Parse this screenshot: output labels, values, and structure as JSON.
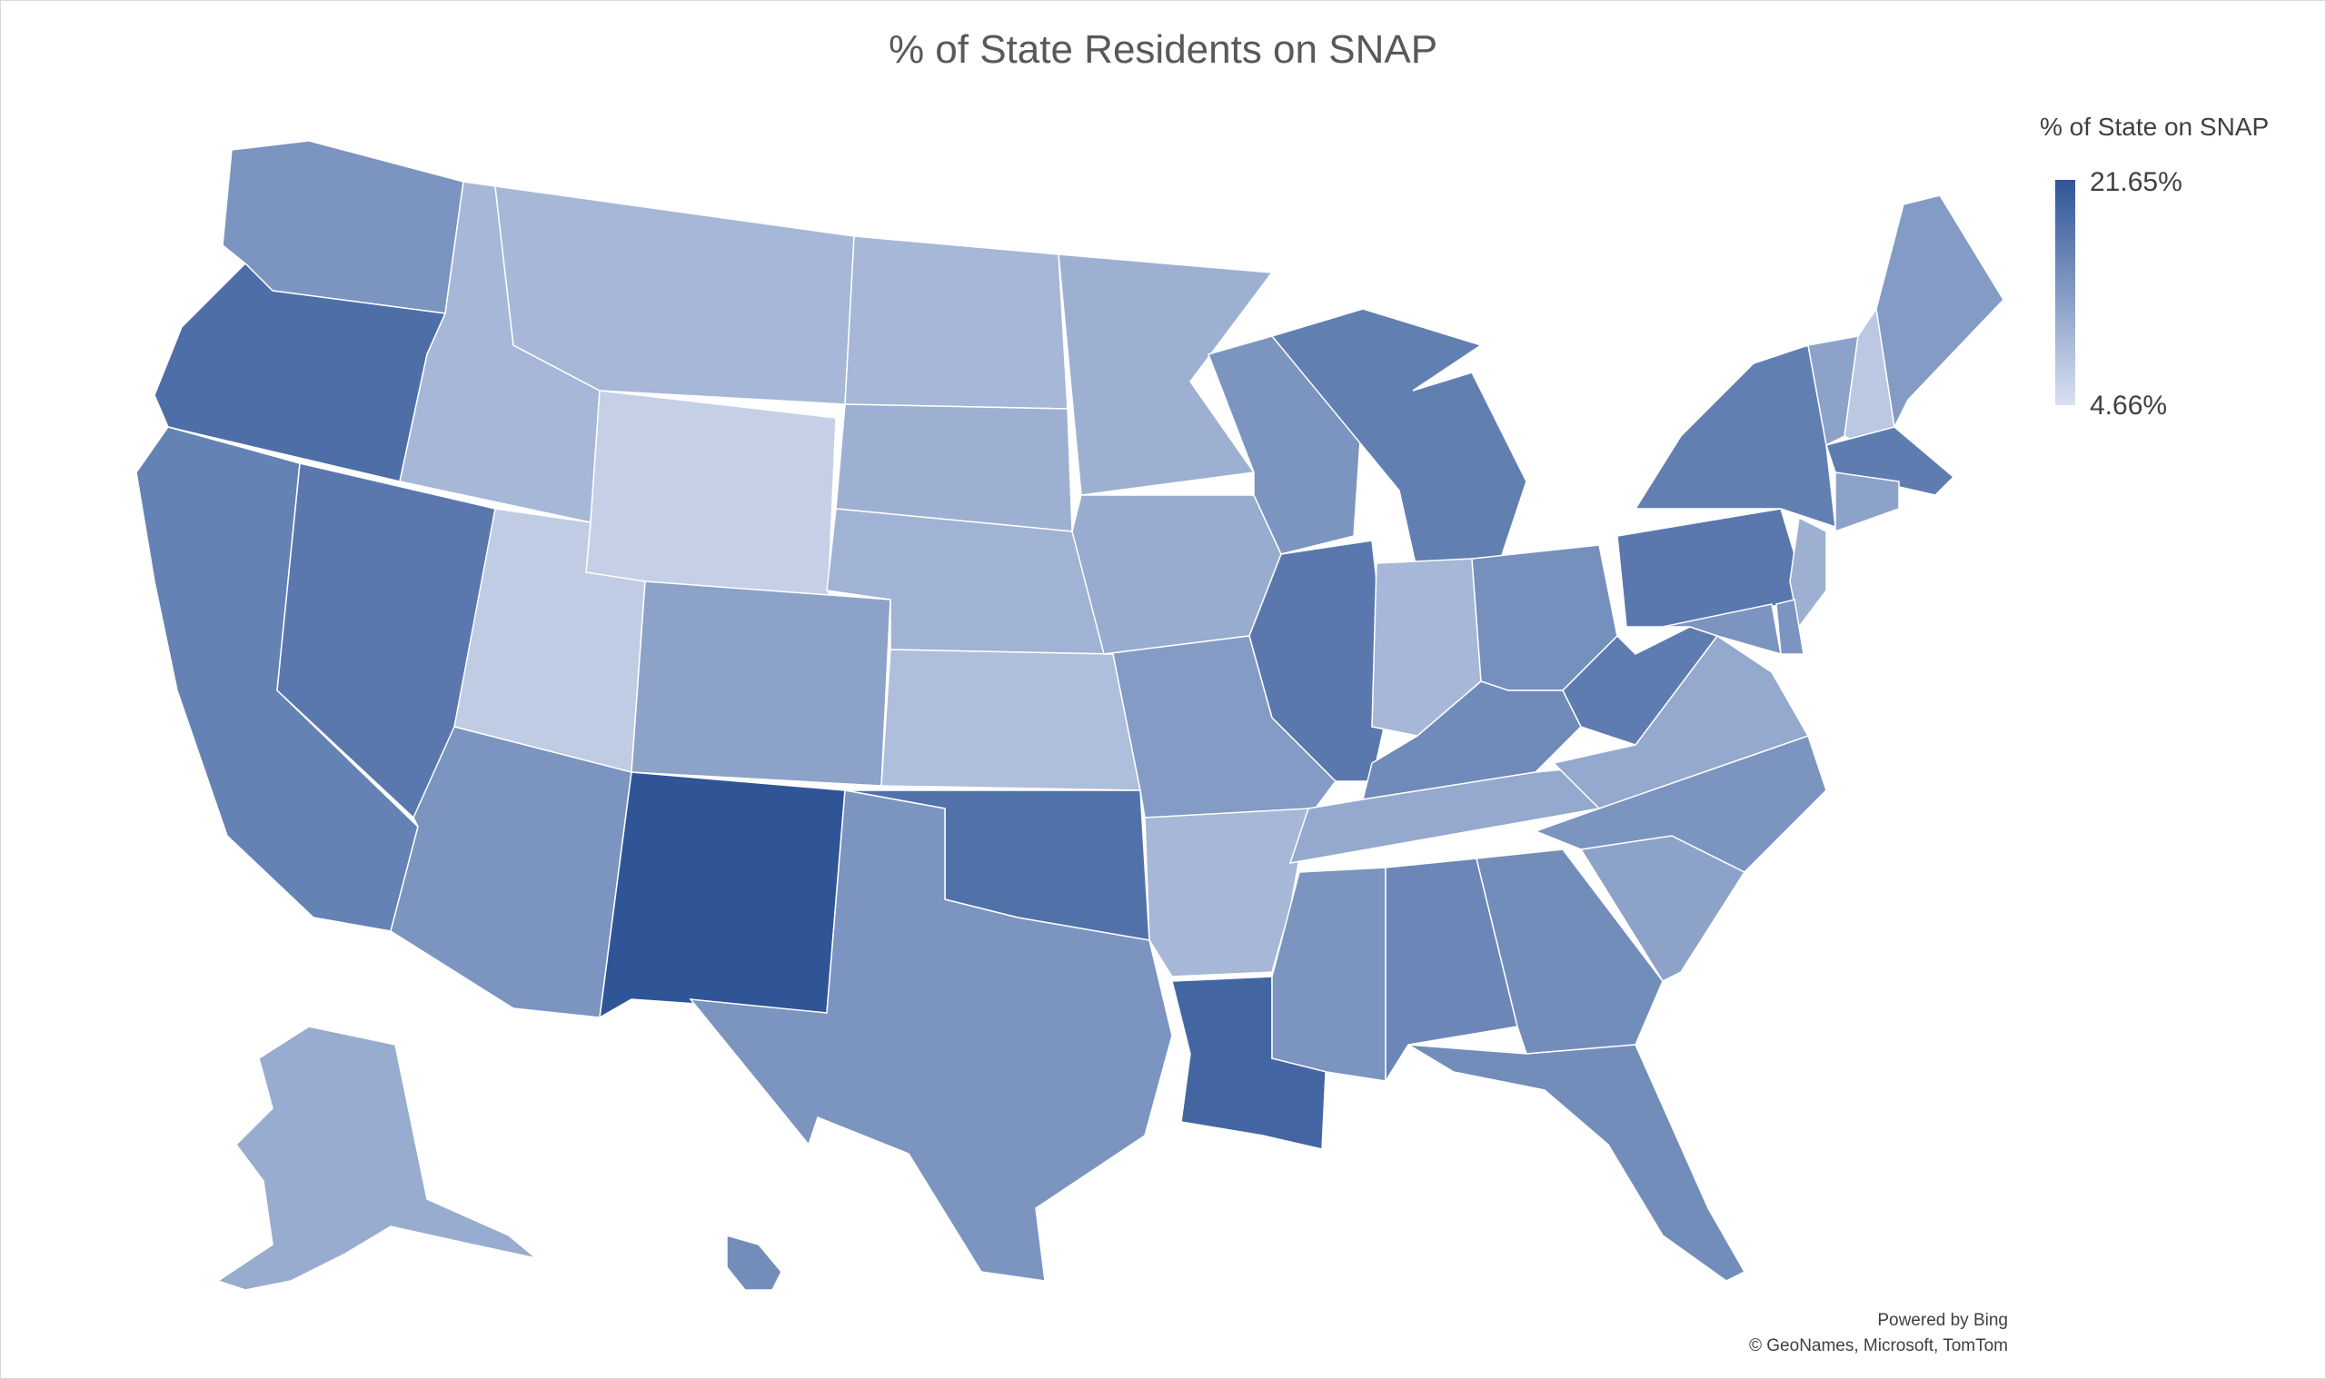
{
  "map": {
    "title": "% of State Residents on SNAP",
    "legend": {
      "title": "% of State on SNAP",
      "max_label": "21.65%",
      "min_label": "4.66%",
      "max_color": "#2f5597",
      "min_color": "#d9e1f2",
      "min_value": 4.66,
      "max_value": 21.65
    },
    "credits": {
      "line1": "Powered by Bing",
      "line2": "© GeoNames, Microsoft, TomTom"
    },
    "states": [
      {
        "id": "WA",
        "level": 0.55
      },
      {
        "id": "OR",
        "level": 0.82
      },
      {
        "id": "CA",
        "level": 0.68
      },
      {
        "id": "NV",
        "level": 0.75
      },
      {
        "id": "ID",
        "level": 0.3
      },
      {
        "id": "MT",
        "level": 0.3
      },
      {
        "id": "WY",
        "level": 0.12
      },
      {
        "id": "UT",
        "level": 0.15
      },
      {
        "id": "AZ",
        "level": 0.55
      },
      {
        "id": "NM",
        "level": 1.0
      },
      {
        "id": "CO",
        "level": 0.45
      },
      {
        "id": "ND",
        "level": 0.3
      },
      {
        "id": "SD",
        "level": 0.35
      },
      {
        "id": "NE",
        "level": 0.33
      },
      {
        "id": "KS",
        "level": 0.25
      },
      {
        "id": "OK",
        "level": 0.8
      },
      {
        "id": "TX",
        "level": 0.55
      },
      {
        "id": "MN",
        "level": 0.35
      },
      {
        "id": "IA",
        "level": 0.38
      },
      {
        "id": "MO",
        "level": 0.5
      },
      {
        "id": "AR",
        "level": 0.3
      },
      {
        "id": "LA",
        "level": 0.88
      },
      {
        "id": "WI",
        "level": 0.55
      },
      {
        "id": "IL",
        "level": 0.75
      },
      {
        "id": "MI",
        "level": 0.7
      },
      {
        "id": "IN",
        "level": 0.3
      },
      {
        "id": "OH",
        "level": 0.58
      },
      {
        "id": "KY",
        "level": 0.62
      },
      {
        "id": "TN",
        "level": 0.4
      },
      {
        "id": "MS",
        "level": 0.55
      },
      {
        "id": "AL",
        "level": 0.65
      },
      {
        "id": "GA",
        "level": 0.6
      },
      {
        "id": "FL",
        "level": 0.6
      },
      {
        "id": "SC",
        "level": 0.45
      },
      {
        "id": "NC",
        "level": 0.55
      },
      {
        "id": "VA",
        "level": 0.4
      },
      {
        "id": "WV",
        "level": 0.72
      },
      {
        "id": "PA",
        "level": 0.75
      },
      {
        "id": "NY",
        "level": 0.7
      },
      {
        "id": "VT",
        "level": 0.45
      },
      {
        "id": "NH",
        "level": 0.18
      },
      {
        "id": "ME",
        "level": 0.5
      },
      {
        "id": "MA",
        "level": 0.72
      },
      {
        "id": "CT",
        "level": 0.45
      },
      {
        "id": "NJ",
        "level": 0.35
      },
      {
        "id": "MD",
        "level": 0.55
      },
      {
        "id": "DE",
        "level": 0.55
      },
      {
        "id": "AK",
        "level": 0.38
      },
      {
        "id": "HI",
        "level": 0.6
      }
    ]
  }
}
